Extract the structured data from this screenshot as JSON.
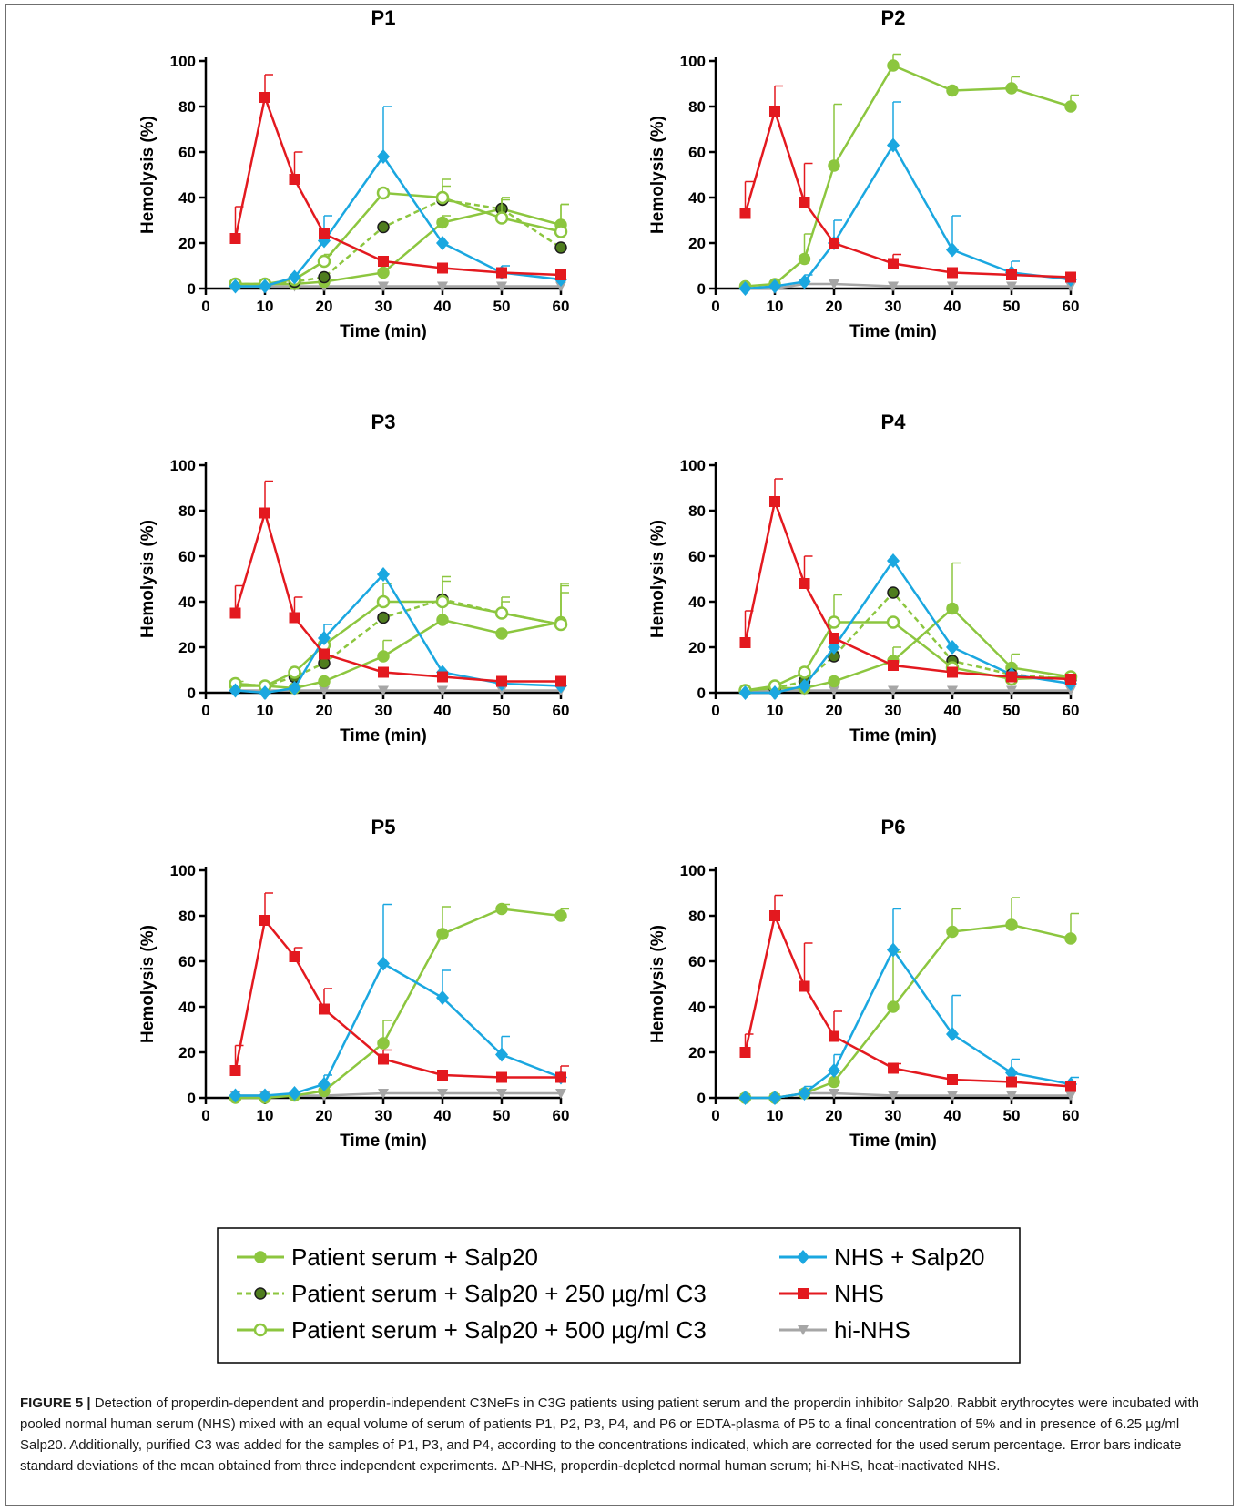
{
  "chart_data": [
    {
      "type": "line",
      "title": "P1",
      "xlabel": "Time (min)",
      "ylabel": "Hemolysis (%)",
      "xlim": [
        0,
        60
      ],
      "ylim": [
        0,
        100
      ],
      "xticks": [
        "0",
        "10",
        "20",
        "30",
        "40",
        "50",
        "60"
      ],
      "yticks": [
        "0",
        "20",
        "40",
        "60",
        "80",
        "100"
      ],
      "series": [
        {
          "key": "ps",
          "x": [
            5,
            10,
            15,
            20,
            30,
            40,
            50,
            60
          ],
          "y": [
            2,
            2,
            2,
            3,
            7,
            29,
            35,
            28
          ],
          "err": [
            0,
            0,
            0,
            0,
            0,
            3,
            5,
            9
          ]
        },
        {
          "key": "c250",
          "x": [
            5,
            10,
            15,
            20,
            30,
            40,
            50,
            60
          ],
          "y": [
            2,
            2,
            3,
            5,
            27,
            39,
            35,
            18
          ],
          "err": [
            0,
            0,
            0,
            0,
            0,
            6,
            5,
            0
          ]
        },
        {
          "key": "c500",
          "x": [
            5,
            10,
            15,
            20,
            30,
            40,
            50,
            60
          ],
          "y": [
            2,
            2,
            4,
            12,
            42,
            40,
            31,
            25
          ],
          "err": [
            0,
            0,
            0,
            3,
            0,
            8,
            8,
            12
          ]
        },
        {
          "key": "nhs_salp",
          "x": [
            5,
            10,
            15,
            20,
            30,
            40,
            50,
            60
          ],
          "y": [
            1,
            1,
            5,
            21,
            58,
            20,
            7,
            4
          ],
          "err": [
            0,
            0,
            0,
            11,
            22,
            0,
            3,
            0
          ]
        },
        {
          "key": "nhs",
          "x": [
            5,
            10,
            15,
            20,
            30,
            40,
            50,
            60
          ],
          "y": [
            22,
            84,
            48,
            24,
            12,
            9,
            7,
            6
          ],
          "err": [
            14,
            10,
            12,
            0,
            0,
            0,
            0,
            0
          ]
        },
        {
          "key": "hi",
          "x": [
            5,
            10,
            15,
            20,
            30,
            40,
            50,
            60
          ],
          "y": [
            1,
            1,
            1,
            1,
            1,
            1,
            1,
            1
          ],
          "err": [
            0,
            0,
            0,
            0,
            0,
            0,
            0,
            0
          ]
        }
      ]
    },
    {
      "type": "line",
      "title": "P2",
      "xlabel": "Time (min)",
      "ylabel": "Hemolysis (%)",
      "xlim": [
        0,
        60
      ],
      "ylim": [
        0,
        100
      ],
      "xticks": [
        "0",
        "10",
        "20",
        "30",
        "40",
        "50",
        "60"
      ],
      "yticks": [
        "0",
        "20",
        "40",
        "60",
        "80",
        "100"
      ],
      "series": [
        {
          "key": "ps",
          "x": [
            5,
            10,
            15,
            20,
            30,
            40,
            50,
            60
          ],
          "y": [
            1,
            2,
            13,
            54,
            98,
            87,
            88,
            80
          ],
          "err": [
            0,
            0,
            11,
            27,
            5,
            0,
            5,
            5
          ]
        },
        {
          "key": "nhs_salp",
          "x": [
            5,
            10,
            15,
            20,
            30,
            40,
            50,
            60
          ],
          "y": [
            0,
            1,
            3,
            20,
            63,
            17,
            7,
            4
          ],
          "err": [
            0,
            0,
            3,
            10,
            19,
            15,
            5,
            0
          ]
        },
        {
          "key": "nhs",
          "x": [
            5,
            10,
            15,
            20,
            30,
            40,
            50,
            60
          ],
          "y": [
            33,
            78,
            38,
            20,
            11,
            7,
            6,
            5
          ],
          "err": [
            14,
            11,
            17,
            0,
            4,
            0,
            0,
            0
          ]
        },
        {
          "key": "hi",
          "x": [
            5,
            10,
            15,
            20,
            30,
            40,
            50,
            60
          ],
          "y": [
            0,
            0,
            2,
            2,
            1,
            1,
            1,
            1
          ],
          "err": [
            0,
            0,
            0,
            0,
            0,
            0,
            0,
            0
          ]
        }
      ]
    },
    {
      "type": "line",
      "title": "P3",
      "xlabel": "Time (min)",
      "ylabel": "Hemolysis (%)",
      "xlim": [
        0,
        60
      ],
      "ylim": [
        0,
        100
      ],
      "xticks": [
        "0",
        "10",
        "20",
        "30",
        "40",
        "50",
        "60"
      ],
      "yticks": [
        "0",
        "20",
        "40",
        "60",
        "80",
        "100"
      ],
      "series": [
        {
          "key": "ps",
          "x": [
            5,
            10,
            15,
            20,
            30,
            40,
            50,
            60
          ],
          "y": [
            3,
            3,
            2,
            5,
            16,
            32,
            26,
            31
          ],
          "err": [
            2,
            0,
            0,
            0,
            7,
            8,
            0,
            16
          ]
        },
        {
          "key": "c250",
          "x": [
            5,
            10,
            15,
            20,
            30,
            40,
            50,
            60
          ],
          "y": [
            4,
            3,
            7,
            13,
            33,
            41,
            35,
            30
          ],
          "err": [
            0,
            0,
            0,
            0,
            0,
            8,
            5,
            14
          ]
        },
        {
          "key": "c500",
          "x": [
            5,
            10,
            15,
            20,
            30,
            40,
            50,
            60
          ],
          "y": [
            4,
            3,
            9,
            21,
            40,
            40,
            35,
            30
          ],
          "err": [
            0,
            0,
            0,
            0,
            8,
            11,
            7,
            18
          ]
        },
        {
          "key": "nhs_salp",
          "x": [
            5,
            10,
            15,
            20,
            30,
            40,
            50,
            60
          ],
          "y": [
            1,
            0,
            2,
            24,
            52,
            9,
            4,
            3
          ],
          "err": [
            0,
            0,
            0,
            6,
            0,
            0,
            0,
            0
          ]
        },
        {
          "key": "nhs",
          "x": [
            5,
            10,
            15,
            20,
            30,
            40,
            50,
            60
          ],
          "y": [
            35,
            79,
            33,
            17,
            9,
            7,
            5,
            5
          ],
          "err": [
            12,
            14,
            9,
            0,
            0,
            0,
            0,
            0
          ]
        },
        {
          "key": "hi",
          "x": [
            5,
            10,
            15,
            20,
            30,
            40,
            50,
            60
          ],
          "y": [
            1,
            1,
            1,
            1,
            1,
            1,
            1,
            1
          ],
          "err": [
            0,
            0,
            0,
            0,
            0,
            0,
            0,
            0
          ]
        }
      ]
    },
    {
      "type": "line",
      "title": "P4",
      "xlabel": "Time (min)",
      "ylabel": "Hemolysis (%)",
      "xlim": [
        0,
        60
      ],
      "ylim": [
        0,
        100
      ],
      "xticks": [
        "0",
        "10",
        "20",
        "30",
        "40",
        "50",
        "60"
      ],
      "yticks": [
        "0",
        "20",
        "40",
        "60",
        "80",
        "100"
      ],
      "series": [
        {
          "key": "ps",
          "x": [
            5,
            10,
            15,
            20,
            30,
            40,
            50,
            60
          ],
          "y": [
            1,
            2,
            2,
            5,
            14,
            37,
            11,
            7
          ],
          "err": [
            0,
            0,
            0,
            0,
            6,
            20,
            6,
            0
          ]
        },
        {
          "key": "c250",
          "x": [
            5,
            10,
            15,
            20,
            30,
            40,
            50,
            60
          ],
          "y": [
            1,
            2,
            5,
            16,
            44,
            14,
            8,
            6
          ],
          "err": [
            0,
            0,
            0,
            0,
            0,
            0,
            0,
            0
          ]
        },
        {
          "key": "c500",
          "x": [
            5,
            10,
            15,
            20,
            30,
            40,
            50,
            60
          ],
          "y": [
            1,
            3,
            9,
            31,
            31,
            11,
            6,
            7
          ],
          "err": [
            0,
            0,
            0,
            12,
            0,
            0,
            0,
            0
          ]
        },
        {
          "key": "nhs_salp",
          "x": [
            5,
            10,
            15,
            20,
            30,
            40,
            50,
            60
          ],
          "y": [
            0,
            0,
            3,
            20,
            58,
            20,
            8,
            4
          ],
          "err": [
            0,
            0,
            0,
            0,
            0,
            0,
            0,
            0
          ]
        },
        {
          "key": "nhs",
          "x": [
            5,
            10,
            15,
            20,
            30,
            40,
            50,
            60
          ],
          "y": [
            22,
            84,
            48,
            24,
            12,
            9,
            7,
            6
          ],
          "err": [
            14,
            10,
            12,
            0,
            0,
            0,
            0,
            0
          ]
        },
        {
          "key": "hi",
          "x": [
            5,
            10,
            15,
            20,
            30,
            40,
            50,
            60
          ],
          "y": [
            1,
            1,
            1,
            1,
            1,
            1,
            1,
            1
          ],
          "err": [
            0,
            0,
            0,
            0,
            0,
            0,
            0,
            0
          ]
        }
      ]
    },
    {
      "type": "line",
      "title": "P5",
      "xlabel": "Time (min)",
      "ylabel": "Hemolysis (%)",
      "xlim": [
        0,
        60
      ],
      "ylim": [
        0,
        100
      ],
      "xticks": [
        "0",
        "10",
        "20",
        "30",
        "40",
        "50",
        "60"
      ],
      "yticks": [
        "0",
        "20",
        "40",
        "60",
        "80",
        "100"
      ],
      "series": [
        {
          "key": "ps",
          "x": [
            5,
            10,
            15,
            20,
            30,
            40,
            50,
            60
          ],
          "y": [
            0,
            0,
            1,
            3,
            24,
            72,
            83,
            80
          ],
          "err": [
            0,
            0,
            0,
            0,
            10,
            12,
            2,
            3
          ]
        },
        {
          "key": "nhs_salp",
          "x": [
            5,
            10,
            15,
            20,
            30,
            40,
            50,
            60
          ],
          "y": [
            1,
            1,
            2,
            6,
            59,
            44,
            19,
            9
          ],
          "err": [
            0,
            0,
            0,
            4,
            26,
            12,
            8,
            0
          ]
        },
        {
          "key": "nhs",
          "x": [
            5,
            10,
            15,
            20,
            30,
            40,
            50,
            60
          ],
          "y": [
            12,
            78,
            62,
            39,
            17,
            10,
            9,
            9
          ],
          "err": [
            11,
            12,
            4,
            9,
            4,
            0,
            0,
            5
          ]
        },
        {
          "key": "hi",
          "x": [
            5,
            10,
            15,
            20,
            30,
            40,
            50,
            60
          ],
          "y": [
            1,
            1,
            1,
            1,
            2,
            2,
            2,
            2
          ],
          "err": [
            0,
            0,
            0,
            0,
            0,
            0,
            0,
            0
          ]
        }
      ]
    },
    {
      "type": "line",
      "title": "P6",
      "xlabel": "Time (min)",
      "ylabel": "Hemolysis (%)",
      "xlim": [
        0,
        60
      ],
      "ylim": [
        0,
        100
      ],
      "xticks": [
        "0",
        "10",
        "20",
        "30",
        "40",
        "50",
        "60"
      ],
      "yticks": [
        "0",
        "20",
        "40",
        "60",
        "80",
        "100"
      ],
      "series": [
        {
          "key": "ps",
          "x": [
            5,
            10,
            15,
            20,
            30,
            40,
            50,
            60
          ],
          "y": [
            0,
            0,
            2,
            7,
            40,
            73,
            76,
            70
          ],
          "err": [
            0,
            0,
            0,
            0,
            24,
            10,
            12,
            11
          ]
        },
        {
          "key": "nhs_salp",
          "x": [
            5,
            10,
            15,
            20,
            30,
            40,
            50,
            60
          ],
          "y": [
            0,
            0,
            2,
            12,
            65,
            28,
            11,
            6
          ],
          "err": [
            0,
            0,
            3,
            7,
            18,
            17,
            6,
            3
          ]
        },
        {
          "key": "nhs",
          "x": [
            5,
            10,
            15,
            20,
            30,
            40,
            50,
            60
          ],
          "y": [
            20,
            80,
            49,
            27,
            13,
            8,
            7,
            5
          ],
          "err": [
            8,
            9,
            19,
            11,
            2,
            0,
            0,
            0
          ]
        },
        {
          "key": "hi",
          "x": [
            5,
            10,
            15,
            20,
            30,
            40,
            50,
            60
          ],
          "y": [
            0,
            0,
            2,
            2,
            1,
            1,
            1,
            1
          ],
          "err": [
            0,
            0,
            0,
            0,
            0,
            0,
            0,
            0
          ]
        }
      ]
    }
  ],
  "legend": [
    {
      "key": "ps",
      "label": "Patient serum + Salp20",
      "color": "#8cc63f",
      "marker": "circle-filled",
      "dash": false
    },
    {
      "key": "c250",
      "label": "Patient serum + Salp20 + 250 µg/ml C3",
      "color": "#8cc63f",
      "marker": "circle-dark",
      "dash": true
    },
    {
      "key": "c500",
      "label": "Patient serum + Salp20 + 500 µg/ml C3",
      "color": "#8cc63f",
      "marker": "circle-open",
      "dash": false
    },
    {
      "key": "nhs_salp",
      "label": "NHS + Salp20",
      "color": "#1aa7e0",
      "marker": "diamond",
      "dash": false
    },
    {
      "key": "nhs",
      "label": "NHS",
      "color": "#e3191f",
      "marker": "square",
      "dash": false
    },
    {
      "key": "hi",
      "label": "hi-NHS",
      "color": "#a6a6a6",
      "marker": "triangle-down",
      "dash": false
    }
  ],
  "caption": {
    "lead": "FIGURE 5 |",
    "text": "Detection of properdin-dependent and properdin-independent C3NeFs in C3G patients using patient serum and the properdin inhibitor Salp20. Rabbit erythrocytes were incubated with pooled normal human serum (NHS) mixed with an equal volume of serum of patients P1, P2, P3, P4, and P6 or EDTA-plasma of P5 to a final concentration of 5% and in presence of 6.25 µg/ml Salp20. Additionally, purified C3 was added for the samples of P1, P3, and P4, according to the concentrations indicated, which are corrected for the used serum percentage. Error bars indicate standard deviations of the mean obtained from three independent experiments. ΔP-NHS, properdin-depleted normal human serum; hi-NHS, heat-inactivated NHS."
  }
}
